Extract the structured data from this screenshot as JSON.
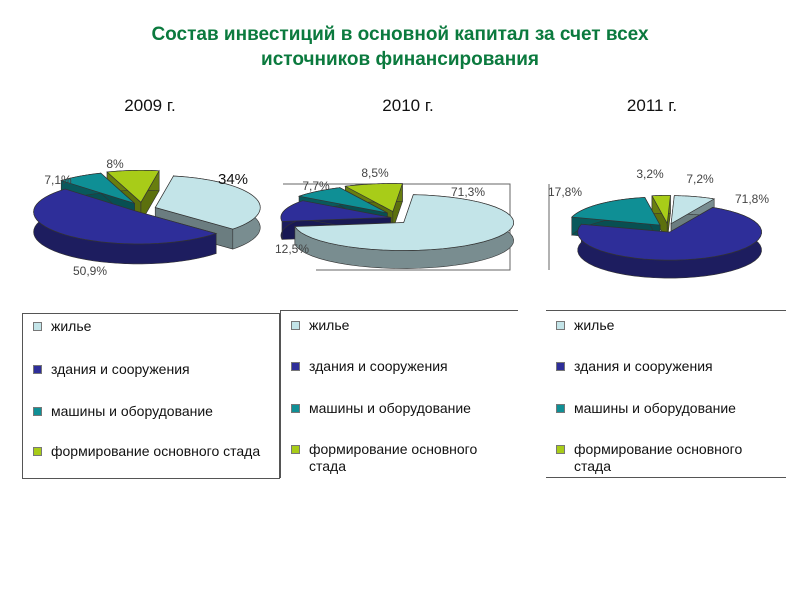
{
  "title_line1": "Состав инвестиций в основной капитал за счет всех",
  "title_line2": "источников финансирования",
  "colors": {
    "housing": "#c3e4e8",
    "buildings": "#2e2e99",
    "machinery": "#0f8f95",
    "herd": "#a8cc18"
  },
  "chart_data": [
    {
      "type": "pie",
      "title": "2009 г.",
      "categories": [
        "жилье",
        "здания и сооружения",
        "машины и оборудование",
        "формирование основного стада"
      ],
      "values": [
        34,
        50.9,
        7.1,
        8
      ],
      "labels": [
        "34%",
        "50,9%",
        "7,1%",
        "8%"
      ]
    },
    {
      "type": "pie",
      "title": "2010 г.",
      "categories": [
        "жилье",
        "здания и сооружения",
        "машины и оборудование",
        "формирование основного стада"
      ],
      "values": [
        71.3,
        12.5,
        7.7,
        8.5
      ],
      "labels": [
        "71,3%",
        "12,5%",
        "7,7%",
        "8,5%"
      ]
    },
    {
      "type": "pie",
      "title": "2011 г.",
      "categories": [
        "жилье",
        "здания и сооружения",
        "машины и оборудование",
        "формирование основного стада"
      ],
      "values": [
        7.2,
        71.8,
        17.8,
        3.2
      ],
      "labels": [
        "7,2%",
        "71,8%",
        "17,8%",
        "3,2%"
      ]
    }
  ],
  "legend": {
    "items": [
      "жилье",
      "здания и сооружения",
      "машины и оборудование",
      "формирование основного стада"
    ]
  }
}
